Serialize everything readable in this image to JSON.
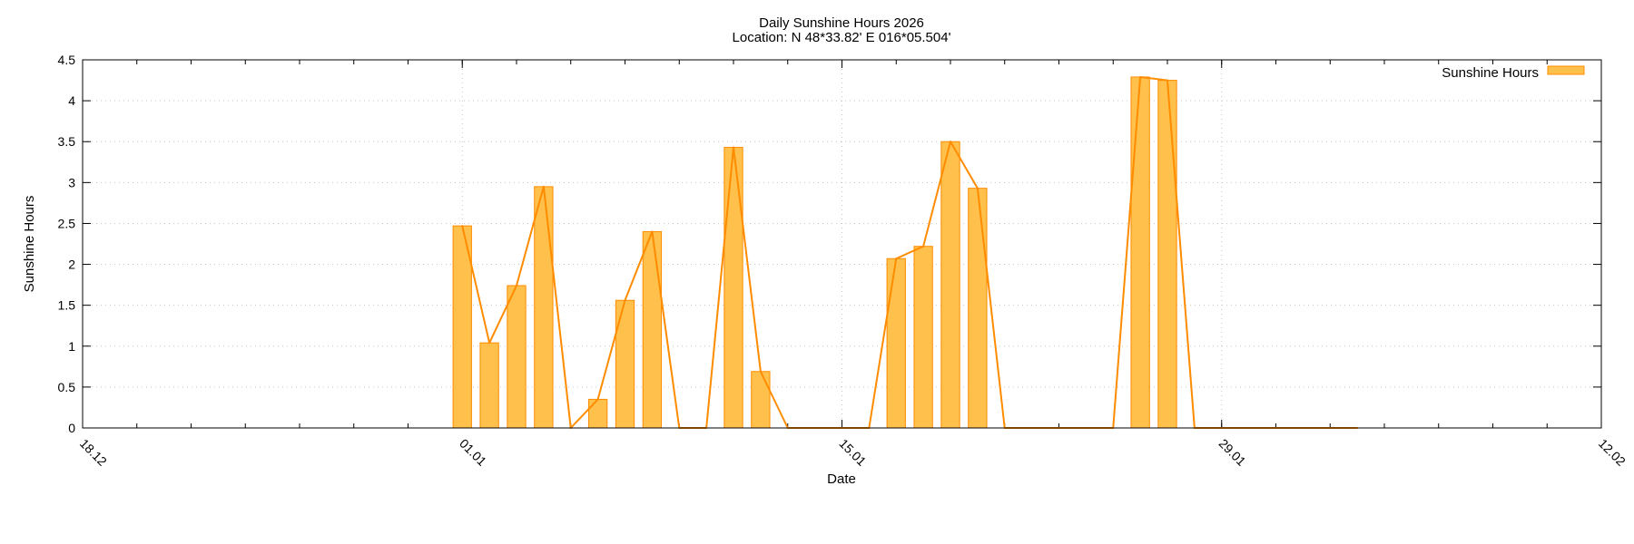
{
  "chart_data": {
    "type": "bar",
    "title": "Daily Sunshine Hours 2026",
    "subtitle": "Location: N 48*33.82'  E 016*05.504'",
    "xlabel": "Date",
    "ylabel": "Sunshine Hours",
    "xlim": [
      "2025-12-18",
      "2026-02-12"
    ],
    "ylim": [
      0,
      4.5
    ],
    "x_ticks": [
      {
        "date": "2025-12-18",
        "label": "18.12"
      },
      {
        "date": "2026-01-01",
        "label": "01.01"
      },
      {
        "date": "2026-01-15",
        "label": "15.01"
      },
      {
        "date": "2026-01-29",
        "label": "29.01"
      },
      {
        "date": "2026-02-12",
        "label": "12.02"
      }
    ],
    "y_ticks": [
      {
        "value": 0,
        "label": "0"
      },
      {
        "value": 0.5,
        "label": "0.5"
      },
      {
        "value": 1,
        "label": "1"
      },
      {
        "value": 1.5,
        "label": "1.5"
      },
      {
        "value": 2,
        "label": "2"
      },
      {
        "value": 2.5,
        "label": "2.5"
      },
      {
        "value": 3,
        "label": "3"
      },
      {
        "value": 3.5,
        "label": "3.5"
      },
      {
        "value": 4,
        "label": "4"
      },
      {
        "value": 4.5,
        "label": "4.5"
      }
    ],
    "grid": true,
    "legend_position": "top-right",
    "series": [
      {
        "name": "Sunshine Hours",
        "color": "#ff8c00",
        "fill": "#ffc04c",
        "x": [
          "2026-01-01",
          "2026-01-02",
          "2026-01-03",
          "2026-01-04",
          "2026-01-05",
          "2026-01-06",
          "2026-01-07",
          "2026-01-08",
          "2026-01-09",
          "2026-01-10",
          "2026-01-11",
          "2026-01-12",
          "2026-01-13",
          "2026-01-14",
          "2026-01-15",
          "2026-01-16",
          "2026-01-17",
          "2026-01-18",
          "2026-01-19",
          "2026-01-20",
          "2026-01-21",
          "2026-01-22",
          "2026-01-23",
          "2026-01-24",
          "2026-01-25",
          "2026-01-26",
          "2026-01-27",
          "2026-01-28",
          "2026-01-29",
          "2026-01-30",
          "2026-01-31",
          "2026-02-01",
          "2026-02-02",
          "2026-02-03"
        ],
        "values": [
          2.47,
          1.04,
          1.74,
          2.95,
          0,
          0.35,
          1.56,
          2.4,
          0,
          0,
          3.43,
          0.69,
          0,
          0,
          0,
          0,
          2.07,
          2.22,
          3.5,
          2.93,
          0,
          0,
          0,
          0,
          0,
          4.29,
          4.25,
          0,
          0,
          0,
          0,
          0,
          0,
          0
        ]
      }
    ]
  }
}
